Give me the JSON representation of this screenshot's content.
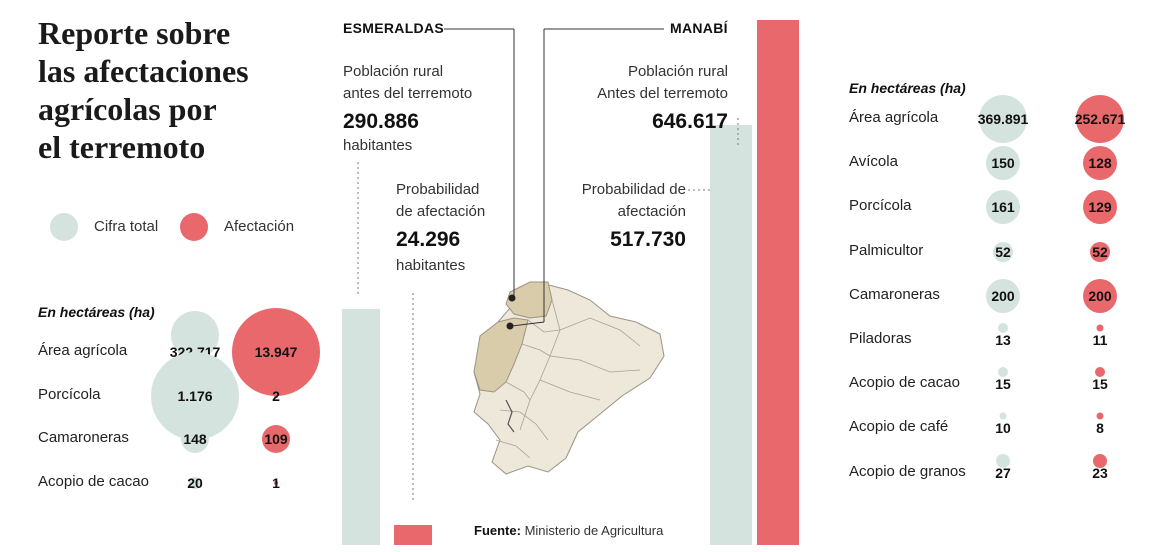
{
  "title_lines": [
    "Reporte sobre",
    "las afectaciones",
    "agrícolas por",
    "el terremoto"
  ],
  "legend": {
    "total_label": "Cifra total",
    "affected_label": "Afectación"
  },
  "colors": {
    "total": "#d5e3de",
    "affected": "#e8686b",
    "map_fill": "#ede8da",
    "map_highlight": "#d9ccaa",
    "map_stroke": "#9a9484"
  },
  "esmeraldas": {
    "label": "ESMERALDAS",
    "rural_label_1": "Población rural",
    "rural_label_2": "antes del terremoto",
    "rural_value": "290.886",
    "rural_unit": "habitantes",
    "prob_label_1": "Probabilidad",
    "prob_label_2": "de afectación",
    "prob_value": "24.296",
    "prob_unit": "habitantes"
  },
  "manabi": {
    "label": "MANABÍ",
    "rural_label_1": "Población rural",
    "rural_label_2": "Antes del terremoto",
    "rural_value": "646.617",
    "prob_label_1": "Probabilidad de",
    "prob_label_2": "afectación",
    "prob_value": "517.730"
  },
  "source": {
    "prefix": "Fuente:",
    "text": " Ministerio de Agricultura"
  },
  "chart_data": [
    {
      "type": "bar",
      "categories": [
        "Esmeraldas",
        "Manabí"
      ],
      "series": [
        {
          "name": "Población rural antes del terremoto",
          "values": [
            290886,
            646617
          ]
        },
        {
          "name": "Probabilidad de afectación",
          "values": [
            24296,
            517730
          ]
        }
      ],
      "ylim": [
        0,
        646617
      ]
    },
    {
      "type": "scatter",
      "header": "En hectáreas (ha)",
      "region": "Esmeraldas",
      "categories": [
        "Área agrícola",
        "Porcícola",
        "Camaroneras",
        "Acopio de cacao"
      ],
      "total_labels": [
        "322.717",
        "1.176",
        "148",
        "20"
      ],
      "affected_labels": [
        "13.947",
        "2",
        "109",
        "1"
      ],
      "series": [
        {
          "name": "Cifra total",
          "values": [
            322717,
            1176,
            148,
            20
          ]
        },
        {
          "name": "Afectación",
          "values": [
            13947,
            2,
            109,
            1
          ]
        }
      ]
    },
    {
      "type": "scatter",
      "header": "En hectáreas (ha)",
      "region": "Manabí",
      "categories": [
        "Área agrícola",
        "Avícola",
        "Porcícola",
        "Palmicultor",
        "Camaroneras",
        "Piladoras",
        "Acopio de cacao",
        "Acopio de café",
        "Acopio de granos"
      ],
      "total_labels": [
        "369.891",
        "150",
        "161",
        "52",
        "200",
        "13",
        "15",
        "10",
        "27"
      ],
      "affected_labels": [
        "252.671",
        "128",
        "129",
        "52",
        "200",
        "11",
        "15",
        "8",
        "23"
      ],
      "series": [
        {
          "name": "Cifra total",
          "values": [
            369891,
            150,
            161,
            52,
            200,
            13,
            15,
            10,
            27
          ]
        },
        {
          "name": "Afectación",
          "values": [
            252671,
            128,
            129,
            52,
            200,
            11,
            15,
            8,
            23
          ]
        }
      ]
    }
  ]
}
